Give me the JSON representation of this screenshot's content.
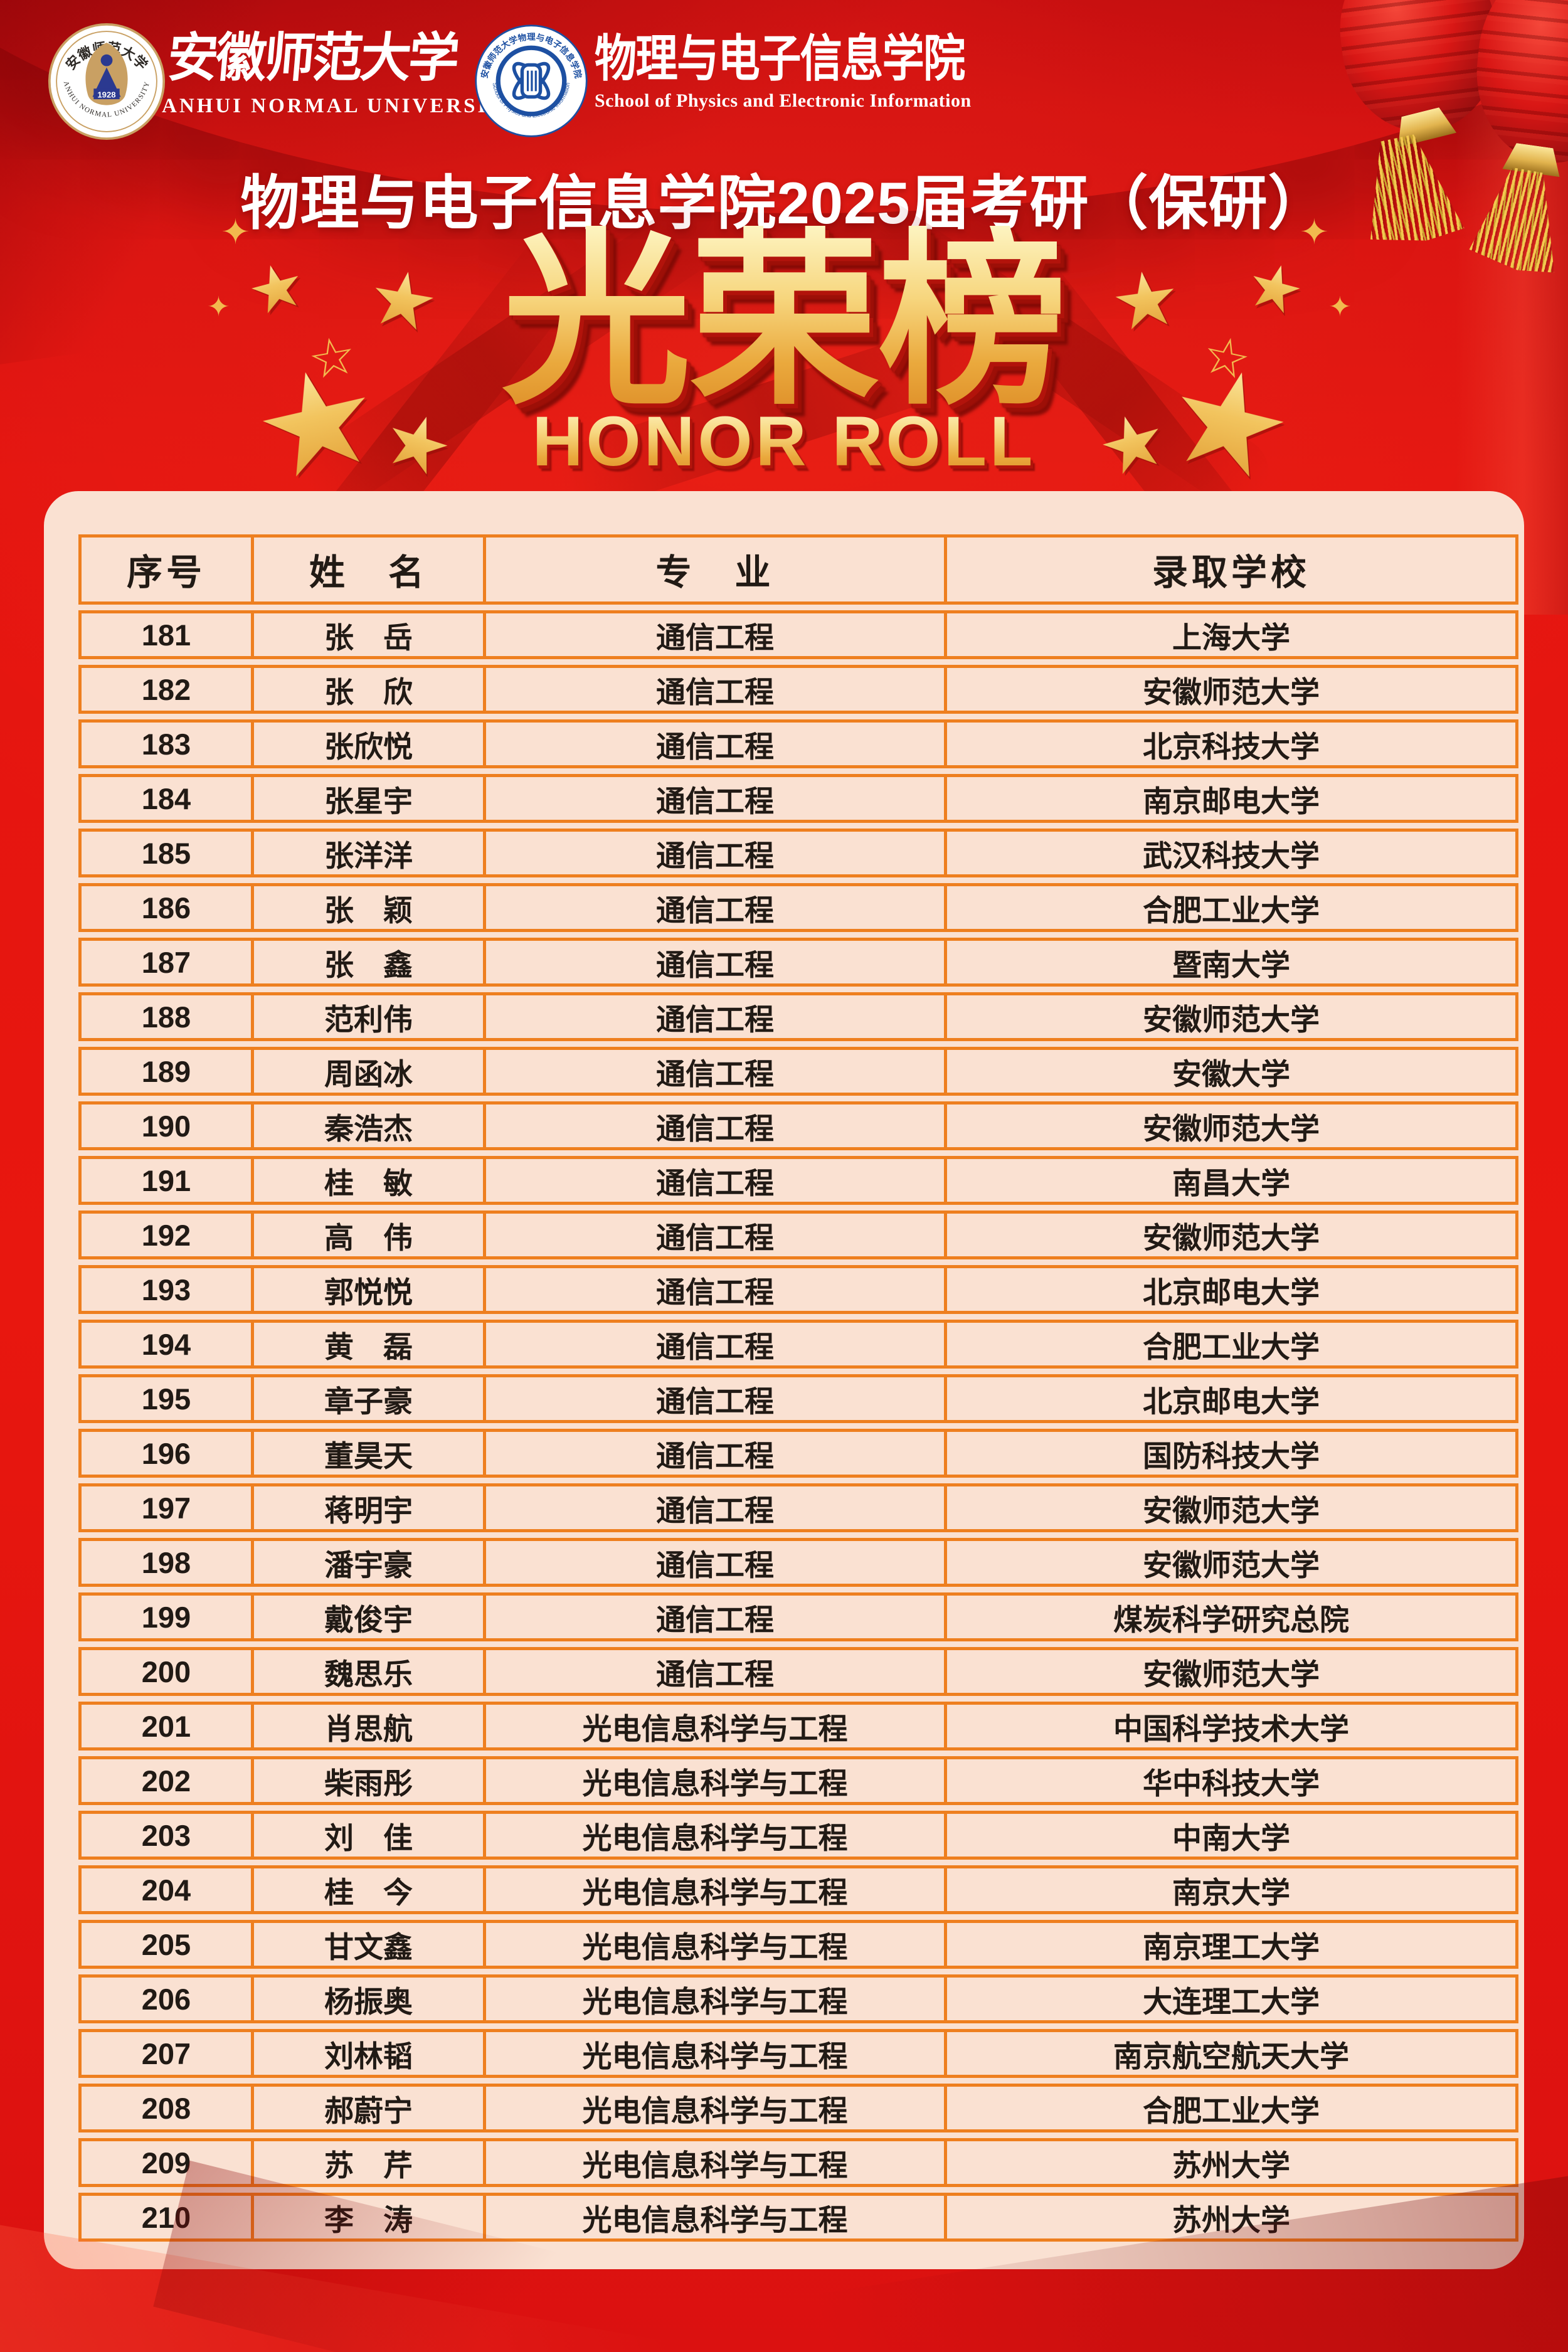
{
  "branding": {
    "anu_seal": {
      "top_text": "安徽师范大学",
      "bottom_text": "ANHUI NORMAL UNIVERSITY",
      "year": "1928"
    },
    "anu_name_zh": "安徽师范大学",
    "anu_name_en": "ANHUI NORMAL UNIVERSITY",
    "dept_seal": {
      "top_text": "安徽师范大学物理与电子信息学院",
      "bottom_text": "School of Physics and Electronic Information"
    },
    "dept_name_zh": "物理与电子信息学院",
    "dept_name_en": "School of Physics and Electronic Information"
  },
  "title": "物理与电子信息学院2025届考研（保研）",
  "honor_title": {
    "zh": "光荣榜",
    "en": "HONOR ROLL"
  },
  "icons": {
    "star": "★",
    "star_hollow": "☆",
    "sparkle": "✦"
  },
  "colors": {
    "background_red": "#e41410",
    "panel_pink": "#fae1d2",
    "border_orange": "#ee7f1f",
    "gold": "#eaa93d",
    "text_dark": "#211a15"
  },
  "table": {
    "columns": [
      "序号",
      "姓　名",
      "专　业",
      "录取学校"
    ],
    "rows": [
      {
        "no": "181",
        "name": "张　岳",
        "major": "通信工程",
        "school": "上海大学"
      },
      {
        "no": "182",
        "name": "张　欣",
        "major": "通信工程",
        "school": "安徽师范大学"
      },
      {
        "no": "183",
        "name": "张欣悦",
        "major": "通信工程",
        "school": "北京科技大学"
      },
      {
        "no": "184",
        "name": "张星宇",
        "major": "通信工程",
        "school": "南京邮电大学"
      },
      {
        "no": "185",
        "name": "张洋洋",
        "major": "通信工程",
        "school": "武汉科技大学"
      },
      {
        "no": "186",
        "name": "张　颖",
        "major": "通信工程",
        "school": "合肥工业大学"
      },
      {
        "no": "187",
        "name": "张　鑫",
        "major": "通信工程",
        "school": "暨南大学"
      },
      {
        "no": "188",
        "name": "范利伟",
        "major": "通信工程",
        "school": "安徽师范大学"
      },
      {
        "no": "189",
        "name": "周函冰",
        "major": "通信工程",
        "school": "安徽大学"
      },
      {
        "no": "190",
        "name": "秦浩杰",
        "major": "通信工程",
        "school": "安徽师范大学"
      },
      {
        "no": "191",
        "name": "桂　敏",
        "major": "通信工程",
        "school": "南昌大学"
      },
      {
        "no": "192",
        "name": "高　伟",
        "major": "通信工程",
        "school": "安徽师范大学"
      },
      {
        "no": "193",
        "name": "郭悦悦",
        "major": "通信工程",
        "school": "北京邮电大学"
      },
      {
        "no": "194",
        "name": "黄　磊",
        "major": "通信工程",
        "school": "合肥工业大学"
      },
      {
        "no": "195",
        "name": "章子豪",
        "major": "通信工程",
        "school": "北京邮电大学"
      },
      {
        "no": "196",
        "name": "董昊天",
        "major": "通信工程",
        "school": "国防科技大学"
      },
      {
        "no": "197",
        "name": "蒋明宇",
        "major": "通信工程",
        "school": "安徽师范大学"
      },
      {
        "no": "198",
        "name": "潘宇豪",
        "major": "通信工程",
        "school": "安徽师范大学"
      },
      {
        "no": "199",
        "name": "戴俊宇",
        "major": "通信工程",
        "school": "煤炭科学研究总院"
      },
      {
        "no": "200",
        "name": "魏思乐",
        "major": "通信工程",
        "school": "安徽师范大学"
      },
      {
        "no": "201",
        "name": "肖思航",
        "major": "光电信息科学与工程",
        "school": "中国科学技术大学"
      },
      {
        "no": "202",
        "name": "柴雨彤",
        "major": "光电信息科学与工程",
        "school": "华中科技大学"
      },
      {
        "no": "203",
        "name": "刘　佳",
        "major": "光电信息科学与工程",
        "school": "中南大学"
      },
      {
        "no": "204",
        "name": "桂　今",
        "major": "光电信息科学与工程",
        "school": "南京大学"
      },
      {
        "no": "205",
        "name": "甘文鑫",
        "major": "光电信息科学与工程",
        "school": "南京理工大学"
      },
      {
        "no": "206",
        "name": "杨振奥",
        "major": "光电信息科学与工程",
        "school": "大连理工大学"
      },
      {
        "no": "207",
        "name": "刘林韬",
        "major": "光电信息科学与工程",
        "school": "南京航空航天大学"
      },
      {
        "no": "208",
        "name": "郝蔚宁",
        "major": "光电信息科学与工程",
        "school": "合肥工业大学"
      },
      {
        "no": "209",
        "name": "苏　芹",
        "major": "光电信息科学与工程",
        "school": "苏州大学"
      },
      {
        "no": "210",
        "name": "李　涛",
        "major": "光电信息科学与工程",
        "school": "苏州大学"
      }
    ]
  }
}
